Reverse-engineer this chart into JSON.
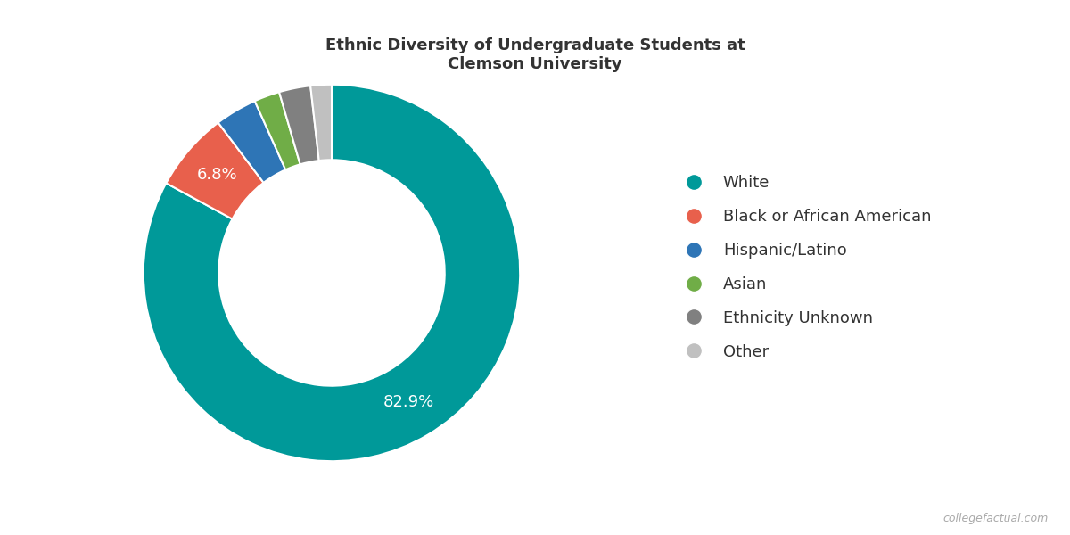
{
  "title": "Ethnic Diversity of Undergraduate Students at\nClemson University",
  "title_fontsize": 13,
  "title_color": "#333333",
  "background_color": "#ffffff",
  "categories": [
    "White",
    "Black or African American",
    "Hispanic/Latino",
    "Asian",
    "Ethnicity Unknown",
    "Other"
  ],
  "values": [
    82.9,
    6.8,
    3.6,
    2.2,
    2.7,
    1.8
  ],
  "colors": [
    "#009999",
    "#E8604C",
    "#2E75B6",
    "#70AD47",
    "#808080",
    "#C0C0C0"
  ],
  "labels_shown": [
    "82.9%",
    "6.8%",
    "",
    "",
    "",
    ""
  ],
  "wedge_edge_color": "#ffffff",
  "donut_width": 0.4,
  "legend_fontsize": 13,
  "label_fontsize": 13,
  "watermark": "collegefactual.com"
}
